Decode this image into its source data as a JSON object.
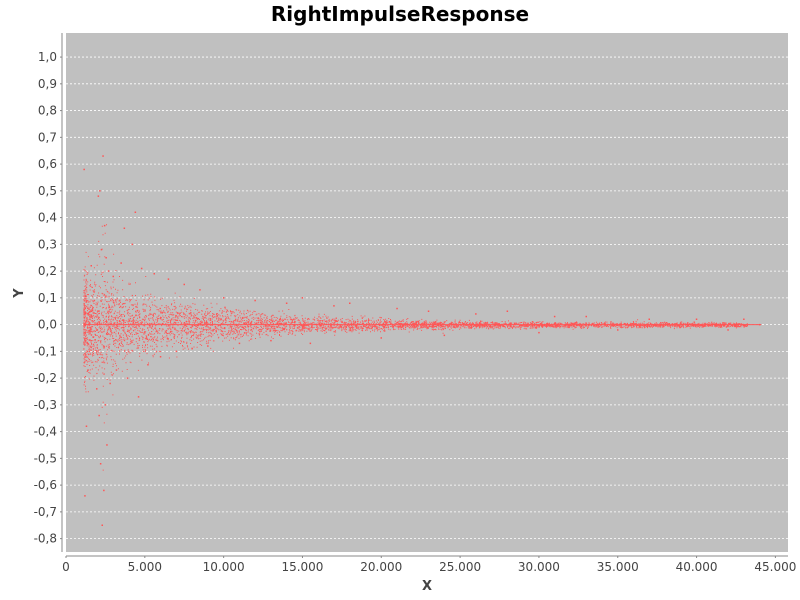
{
  "chart_data": {
    "type": "scatter",
    "title": "RightImpulseResponse",
    "xlabel": "X",
    "ylabel": "Y",
    "xlim": [
      0,
      45800
    ],
    "ylim": [
      -0.85,
      1.09
    ],
    "x_ticks": [
      {
        "value": 0,
        "label": "0"
      },
      {
        "value": 5000,
        "label": "5.000"
      },
      {
        "value": 10000,
        "label": "10.000"
      },
      {
        "value": 15000,
        "label": "15.000"
      },
      {
        "value": 20000,
        "label": "20.000"
      },
      {
        "value": 25000,
        "label": "25.000"
      },
      {
        "value": 30000,
        "label": "30.000"
      },
      {
        "value": 35000,
        "label": "35.000"
      },
      {
        "value": 40000,
        "label": "40.000"
      },
      {
        "value": 45000,
        "label": "45.000"
      }
    ],
    "y_ticks": [
      {
        "value": 1.0,
        "label": "1,0"
      },
      {
        "value": 0.9,
        "label": "0,9"
      },
      {
        "value": 0.8,
        "label": "0,8"
      },
      {
        "value": 0.7,
        "label": "0,7"
      },
      {
        "value": 0.6,
        "label": "0,6"
      },
      {
        "value": 0.5,
        "label": "0,5"
      },
      {
        "value": 0.4,
        "label": "0,4"
      },
      {
        "value": 0.3,
        "label": "0,3"
      },
      {
        "value": 0.2,
        "label": "0,2"
      },
      {
        "value": 0.1,
        "label": "0,1"
      },
      {
        "value": 0.0,
        "label": "0,0"
      },
      {
        "value": -0.1,
        "label": "-0,1"
      },
      {
        "value": -0.2,
        "label": "-0,2"
      },
      {
        "value": -0.3,
        "label": "-0,3"
      },
      {
        "value": -0.4,
        "label": "-0,4"
      },
      {
        "value": -0.5,
        "label": "-0,5"
      },
      {
        "value": -0.6,
        "label": "-0,6"
      },
      {
        "value": -0.7,
        "label": "-0,7"
      },
      {
        "value": -0.8,
        "label": "-0,8"
      }
    ],
    "grid": true,
    "legend": false,
    "colors": {
      "plot_background": "#c0c0c0",
      "gridline": "#ffffff",
      "series": "#ff5555",
      "axis": "#888888"
    },
    "series": [
      {
        "points": [
          [
            1150,
            0.58
          ],
          [
            1200,
            -0.64
          ],
          [
            1300,
            -0.38
          ],
          [
            1400,
            -0.17
          ],
          [
            1600,
            0.22
          ],
          [
            1800,
            0.09
          ],
          [
            1950,
            -0.24
          ],
          [
            2050,
            0.48
          ],
          [
            2100,
            -0.34
          ],
          [
            2150,
            0.5
          ],
          [
            2200,
            -0.52
          ],
          [
            2250,
            0.28
          ],
          [
            2300,
            -0.75
          ],
          [
            2350,
            0.63
          ],
          [
            2400,
            -0.62
          ],
          [
            2450,
            0.37
          ],
          [
            2500,
            -0.3
          ],
          [
            2550,
            0.25
          ],
          [
            2600,
            -0.45
          ],
          [
            2700,
            0.2
          ],
          [
            2800,
            -0.22
          ],
          [
            3000,
            0.18
          ],
          [
            3200,
            -0.17
          ],
          [
            3500,
            0.23
          ],
          [
            3700,
            0.36
          ],
          [
            3900,
            -0.2
          ],
          [
            4200,
            0.3
          ],
          [
            4400,
            0.42
          ],
          [
            4600,
            -0.27
          ],
          [
            4800,
            0.21
          ],
          [
            5200,
            -0.15
          ],
          [
            5600,
            0.19
          ],
          [
            6000,
            -0.12
          ],
          [
            6500,
            0.17
          ],
          [
            7000,
            -0.1
          ],
          [
            7500,
            0.15
          ],
          [
            8000,
            -0.09
          ],
          [
            8500,
            0.13
          ],
          [
            9000,
            -0.08
          ],
          [
            10000,
            0.1
          ],
          [
            11000,
            -0.07
          ],
          [
            12000,
            0.09
          ],
          [
            13000,
            -0.06
          ],
          [
            14000,
            0.08
          ],
          [
            15000,
            0.1
          ],
          [
            15500,
            -0.07
          ],
          [
            17000,
            0.07
          ],
          [
            18000,
            0.08
          ],
          [
            20000,
            -0.05
          ],
          [
            21000,
            0.06
          ],
          [
            23000,
            0.05
          ],
          [
            24000,
            -0.04
          ],
          [
            26000,
            0.04
          ],
          [
            28000,
            0.05
          ],
          [
            30000,
            -0.03
          ],
          [
            31000,
            0.03
          ],
          [
            33000,
            0.03
          ],
          [
            35000,
            -0.02
          ],
          [
            37000,
            0.02
          ],
          [
            40000,
            0.02
          ],
          [
            42000,
            -0.02
          ],
          [
            43000,
            0.02
          ],
          [
            44000,
            0.0
          ]
        ]
      }
    ]
  }
}
